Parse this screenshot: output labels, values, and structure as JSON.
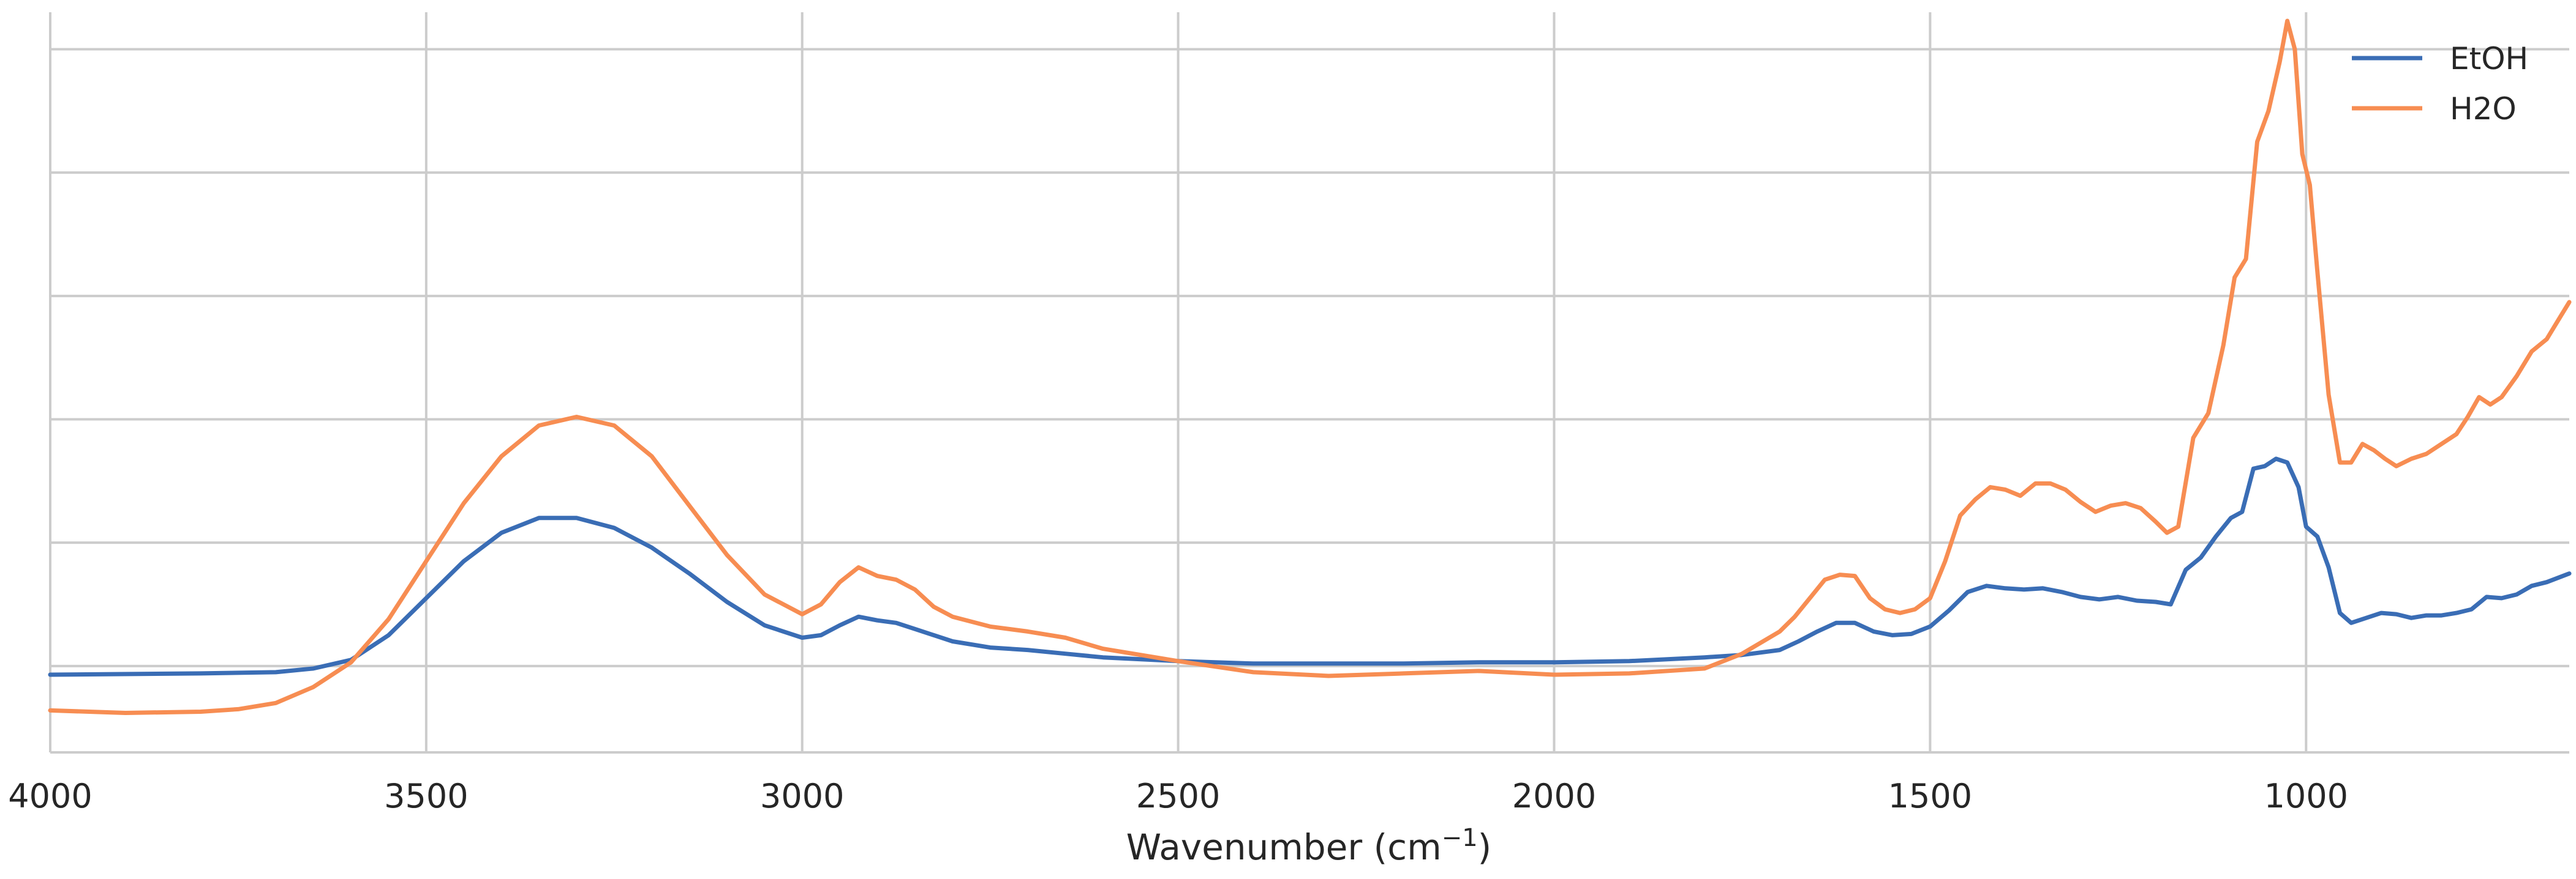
{
  "chart_data": {
    "type": "line",
    "title": "",
    "xlabel": "Wavenumber (cm",
    "xlabel_sup": "−1",
    "xlabel_close": ")",
    "ylabel": "",
    "x_reversed": true,
    "xlim": [
      4000,
      650
    ],
    "ylim": [
      0,
      6
    ],
    "x_ticks": [
      {
        "value": 4000,
        "label": "4000"
      },
      {
        "value": 3500,
        "label": "3500"
      },
      {
        "value": 3000,
        "label": "3000"
      },
      {
        "value": 2500,
        "label": "2500"
      },
      {
        "value": 2000,
        "label": "2000"
      },
      {
        "value": 1500,
        "label": "1500"
      },
      {
        "value": 1000,
        "label": "1000"
      }
    ],
    "y_gridlines": [
      0.7,
      1.7,
      2.7,
      3.7,
      4.7,
      5.7
    ],
    "grid": true,
    "y_tick_labels_shown": false,
    "legend_position": "top-right",
    "series": [
      {
        "name": "EtOH",
        "color": "#3a6db5",
        "points": [
          [
            4000,
            0.63
          ],
          [
            3800,
            0.64
          ],
          [
            3700,
            0.65
          ],
          [
            3650,
            0.68
          ],
          [
            3600,
            0.75
          ],
          [
            3550,
            0.95
          ],
          [
            3500,
            1.25
          ],
          [
            3450,
            1.55
          ],
          [
            3400,
            1.78
          ],
          [
            3350,
            1.9
          ],
          [
            3300,
            1.9
          ],
          [
            3250,
            1.82
          ],
          [
            3200,
            1.66
          ],
          [
            3150,
            1.45
          ],
          [
            3100,
            1.22
          ],
          [
            3050,
            1.03
          ],
          [
            3000,
            0.93
          ],
          [
            2975,
            0.95
          ],
          [
            2950,
            1.03
          ],
          [
            2925,
            1.1
          ],
          [
            2900,
            1.07
          ],
          [
            2875,
            1.05
          ],
          [
            2850,
            1.0
          ],
          [
            2800,
            0.9
          ],
          [
            2750,
            0.85
          ],
          [
            2700,
            0.83
          ],
          [
            2650,
            0.8
          ],
          [
            2600,
            0.77
          ],
          [
            2500,
            0.74
          ],
          [
            2400,
            0.72
          ],
          [
            2300,
            0.72
          ],
          [
            2200,
            0.72
          ],
          [
            2100,
            0.73
          ],
          [
            2000,
            0.73
          ],
          [
            1900,
            0.74
          ],
          [
            1800,
            0.77
          ],
          [
            1750,
            0.79
          ],
          [
            1700,
            0.83
          ],
          [
            1675,
            0.9
          ],
          [
            1650,
            0.98
          ],
          [
            1625,
            1.05
          ],
          [
            1600,
            1.05
          ],
          [
            1575,
            0.98
          ],
          [
            1550,
            0.95
          ],
          [
            1525,
            0.96
          ],
          [
            1500,
            1.02
          ],
          [
            1475,
            1.15
          ],
          [
            1450,
            1.3
          ],
          [
            1425,
            1.35
          ],
          [
            1400,
            1.33
          ],
          [
            1375,
            1.32
          ],
          [
            1350,
            1.33
          ],
          [
            1325,
            1.3
          ],
          [
            1300,
            1.26
          ],
          [
            1275,
            1.24
          ],
          [
            1250,
            1.26
          ],
          [
            1225,
            1.23
          ],
          [
            1200,
            1.22
          ],
          [
            1180,
            1.2
          ],
          [
            1160,
            1.48
          ],
          [
            1140,
            1.58
          ],
          [
            1120,
            1.75
          ],
          [
            1100,
            1.9
          ],
          [
            1085,
            1.95
          ],
          [
            1070,
            2.3
          ],
          [
            1055,
            2.32
          ],
          [
            1040,
            2.38
          ],
          [
            1025,
            2.35
          ],
          [
            1010,
            2.15
          ],
          [
            1000,
            1.83
          ],
          [
            985,
            1.75
          ],
          [
            970,
            1.5
          ],
          [
            955,
            1.13
          ],
          [
            940,
            1.05
          ],
          [
            920,
            1.09
          ],
          [
            900,
            1.13
          ],
          [
            880,
            1.12
          ],
          [
            860,
            1.09
          ],
          [
            840,
            1.11
          ],
          [
            820,
            1.11
          ],
          [
            800,
            1.13
          ],
          [
            780,
            1.16
          ],
          [
            760,
            1.26
          ],
          [
            740,
            1.25
          ],
          [
            720,
            1.28
          ],
          [
            700,
            1.35
          ],
          [
            680,
            1.38
          ],
          [
            650,
            1.45
          ]
        ]
      },
      {
        "name": "H2O",
        "color": "#f78d52",
        "points": [
          [
            4000,
            0.34
          ],
          [
            3900,
            0.32
          ],
          [
            3800,
            0.33
          ],
          [
            3750,
            0.35
          ],
          [
            3700,
            0.4
          ],
          [
            3650,
            0.53
          ],
          [
            3600,
            0.73
          ],
          [
            3550,
            1.08
          ],
          [
            3500,
            1.55
          ],
          [
            3450,
            2.02
          ],
          [
            3400,
            2.4
          ],
          [
            3350,
            2.65
          ],
          [
            3300,
            2.72
          ],
          [
            3250,
            2.65
          ],
          [
            3200,
            2.4
          ],
          [
            3150,
            2.0
          ],
          [
            3100,
            1.6
          ],
          [
            3050,
            1.28
          ],
          [
            3000,
            1.12
          ],
          [
            2975,
            1.2
          ],
          [
            2950,
            1.38
          ],
          [
            2925,
            1.5
          ],
          [
            2900,
            1.43
          ],
          [
            2875,
            1.4
          ],
          [
            2850,
            1.32
          ],
          [
            2825,
            1.18
          ],
          [
            2800,
            1.1
          ],
          [
            2750,
            1.02
          ],
          [
            2700,
            0.98
          ],
          [
            2650,
            0.93
          ],
          [
            2600,
            0.84
          ],
          [
            2500,
            0.74
          ],
          [
            2400,
            0.65
          ],
          [
            2300,
            0.62
          ],
          [
            2200,
            0.64
          ],
          [
            2100,
            0.66
          ],
          [
            2000,
            0.63
          ],
          [
            1900,
            0.64
          ],
          [
            1800,
            0.68
          ],
          [
            1750,
            0.8
          ],
          [
            1700,
            0.98
          ],
          [
            1680,
            1.1
          ],
          [
            1660,
            1.25
          ],
          [
            1640,
            1.4
          ],
          [
            1620,
            1.44
          ],
          [
            1600,
            1.43
          ],
          [
            1580,
            1.25
          ],
          [
            1560,
            1.16
          ],
          [
            1540,
            1.13
          ],
          [
            1520,
            1.16
          ],
          [
            1500,
            1.25
          ],
          [
            1480,
            1.55
          ],
          [
            1460,
            1.92
          ],
          [
            1440,
            2.05
          ],
          [
            1420,
            2.15
          ],
          [
            1400,
            2.13
          ],
          [
            1380,
            2.08
          ],
          [
            1360,
            2.18
          ],
          [
            1340,
            2.18
          ],
          [
            1320,
            2.13
          ],
          [
            1300,
            2.03
          ],
          [
            1280,
            1.95
          ],
          [
            1260,
            2.0
          ],
          [
            1240,
            2.02
          ],
          [
            1220,
            1.98
          ],
          [
            1200,
            1.87
          ],
          [
            1185,
            1.78
          ],
          [
            1170,
            1.83
          ],
          [
            1150,
            2.55
          ],
          [
            1130,
            2.75
          ],
          [
            1110,
            3.3
          ],
          [
            1095,
            3.85
          ],
          [
            1080,
            4.0
          ],
          [
            1065,
            4.95
          ],
          [
            1050,
            5.2
          ],
          [
            1035,
            5.6
          ],
          [
            1025,
            5.93
          ],
          [
            1015,
            5.7
          ],
          [
            1005,
            4.85
          ],
          [
            995,
            4.6
          ],
          [
            985,
            3.9
          ],
          [
            970,
            2.9
          ],
          [
            955,
            2.35
          ],
          [
            940,
            2.35
          ],
          [
            925,
            2.5
          ],
          [
            910,
            2.45
          ],
          [
            895,
            2.38
          ],
          [
            880,
            2.32
          ],
          [
            860,
            2.38
          ],
          [
            840,
            2.42
          ],
          [
            820,
            2.5
          ],
          [
            800,
            2.58
          ],
          [
            785,
            2.72
          ],
          [
            770,
            2.88
          ],
          [
            755,
            2.82
          ],
          [
            740,
            2.88
          ],
          [
            720,
            3.05
          ],
          [
            700,
            3.25
          ],
          [
            680,
            3.35
          ],
          [
            660,
            3.55
          ],
          [
            650,
            3.65
          ]
        ]
      }
    ]
  }
}
